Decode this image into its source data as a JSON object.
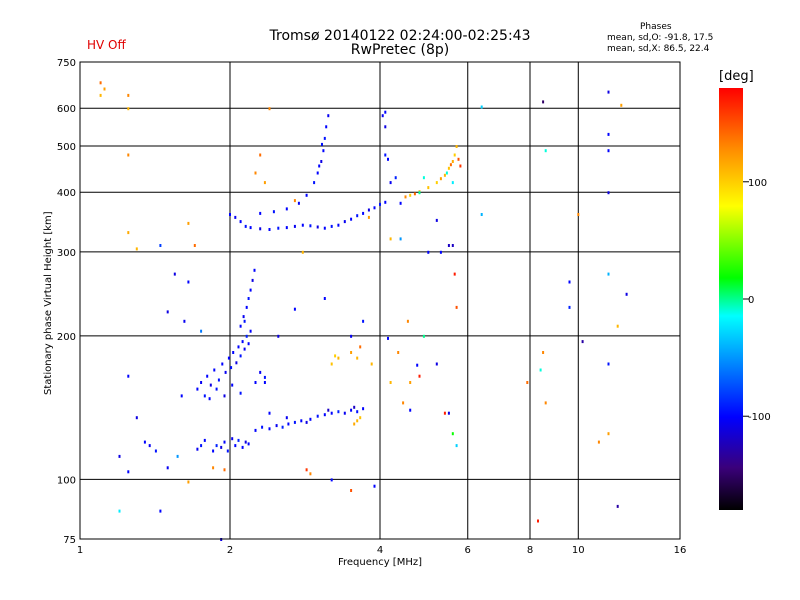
{
  "title": "Tromsø 20140122 02:24:00-02:25:43",
  "subtitle": "RwPretec (8p)",
  "status": "HV Off",
  "phases": {
    "title": "Phases",
    "o_line": "mean, sd,O: -91.8, 17.5",
    "x_line": "mean, sd,X:  86.5, 22.4"
  },
  "colorbar": {
    "unit": "[deg]",
    "range": [
      -180,
      180
    ],
    "ticks": [
      {
        "value": 100,
        "label": "100"
      },
      {
        "value": 0,
        "label": "0"
      },
      {
        "value": -100,
        "label": "-100"
      }
    ]
  },
  "chart_data": {
    "type": "scatter",
    "title": "Tromsø 20140122 02:24:00-02:25:43",
    "subtitle": "RwPretec (8p)",
    "xlabel": "Frequency [MHz]",
    "ylabel": "Stationary phase Virtual Height [km]",
    "xscale": "log",
    "yscale": "log",
    "xlim": [
      1,
      16
    ],
    "ylim": [
      75,
      750
    ],
    "xticks": [
      {
        "value": 1,
        "label": "1"
      },
      {
        "value": 2,
        "label": "2"
      },
      {
        "value": 4,
        "label": "4"
      },
      {
        "value": 6,
        "label": "6"
      },
      {
        "value": 8,
        "label": "8"
      },
      {
        "value": 10,
        "label": "10"
      },
      {
        "value": 16,
        "label": "16"
      }
    ],
    "yticks": [
      {
        "value": 75,
        "label": "75"
      },
      {
        "value": 100,
        "label": "100"
      },
      {
        "value": 200,
        "label": "200"
      },
      {
        "value": 300,
        "label": "300"
      },
      {
        "value": 400,
        "label": "400"
      },
      {
        "value": 500,
        "label": "500"
      },
      {
        "value": 600,
        "label": "600"
      },
      {
        "value": 750,
        "label": "750"
      }
    ],
    "xgrid": [
      2,
      4,
      6,
      8,
      10
    ],
    "ygrid": [
      100,
      200,
      300,
      400,
      500,
      600
    ],
    "color_dimension": "phase [deg]",
    "points": [
      [
        1.85,
        115,
        -100
      ],
      [
        1.88,
        118,
        -90
      ],
      [
        1.92,
        117,
        -110
      ],
      [
        1.95,
        120,
        -100
      ],
      [
        1.98,
        115,
        -95
      ],
      [
        2.02,
        122,
        -105
      ],
      [
        2.05,
        118,
        -100
      ],
      [
        2.08,
        121,
        -90
      ],
      [
        2.12,
        117,
        -100
      ],
      [
        2.15,
        120,
        -110
      ],
      [
        2.18,
        119,
        -100
      ],
      [
        1.75,
        118,
        -95
      ],
      [
        1.78,
        121,
        -100
      ],
      [
        1.72,
        116,
        -105
      ],
      [
        2.25,
        127,
        -100
      ],
      [
        2.32,
        129,
        -95
      ],
      [
        2.4,
        128,
        -100
      ],
      [
        2.48,
        130,
        -105
      ],
      [
        2.55,
        129,
        -90
      ],
      [
        2.62,
        131,
        -100
      ],
      [
        2.7,
        132,
        -95
      ],
      [
        2.78,
        133,
        -100
      ],
      [
        2.85,
        132,
        -110
      ],
      [
        2.9,
        134,
        -100
      ],
      [
        3.0,
        136,
        -95
      ],
      [
        3.1,
        137,
        -100
      ],
      [
        3.2,
        138,
        -100
      ],
      [
        3.3,
        139,
        -90
      ],
      [
        3.4,
        138,
        -105
      ],
      [
        3.5,
        140,
        -100
      ],
      [
        3.6,
        139,
        -95
      ],
      [
        3.7,
        141,
        -100
      ],
      [
        3.15,
        140,
        -120
      ],
      [
        3.55,
        142,
        -120
      ],
      [
        1.72,
        155,
        -100
      ],
      [
        1.75,
        160,
        -105
      ],
      [
        1.78,
        150,
        -95
      ],
      [
        1.8,
        165,
        -100
      ],
      [
        1.83,
        158,
        -110
      ],
      [
        1.86,
        170,
        -100
      ],
      [
        1.9,
        162,
        -95
      ],
      [
        1.93,
        175,
        -100
      ],
      [
        1.96,
        168,
        -105
      ],
      [
        1.99,
        180,
        -100
      ],
      [
        2.01,
        172,
        -95
      ],
      [
        2.03,
        185,
        -100
      ],
      [
        2.06,
        176,
        -110
      ],
      [
        2.08,
        190,
        -100
      ],
      [
        2.1,
        182,
        -95
      ],
      [
        2.12,
        195,
        -100
      ],
      [
        2.14,
        188,
        -105
      ],
      [
        2.16,
        200,
        -90
      ],
      [
        2.18,
        193,
        -100
      ],
      [
        2.2,
        205,
        -100
      ],
      [
        1.82,
        148,
        -100
      ],
      [
        1.88,
        155,
        -95
      ],
      [
        1.95,
        150,
        -110
      ],
      [
        2.02,
        158,
        -100
      ],
      [
        2.1,
        152,
        -95
      ],
      [
        2.25,
        160,
        -100
      ],
      [
        2.3,
        168,
        -105
      ],
      [
        2.35,
        164,
        -95
      ],
      [
        2.1,
        210,
        -100
      ],
      [
        2.13,
        220,
        -105
      ],
      [
        2.16,
        230,
        -100
      ],
      [
        2.18,
        240,
        -95
      ],
      [
        2.2,
        250,
        -100
      ],
      [
        2.22,
        262,
        -110
      ],
      [
        2.24,
        275,
        -100
      ],
      [
        2.14,
        215,
        -95
      ],
      [
        2.0,
        360,
        -100
      ],
      [
        2.05,
        355,
        -105
      ],
      [
        2.1,
        348,
        -100
      ],
      [
        2.15,
        340,
        -95
      ],
      [
        2.2,
        338,
        -100
      ],
      [
        2.3,
        336,
        -110
      ],
      [
        2.4,
        335,
        -100
      ],
      [
        2.5,
        337,
        -95
      ],
      [
        2.6,
        338,
        -100
      ],
      [
        2.7,
        340,
        -105
      ],
      [
        2.8,
        342,
        -100
      ],
      [
        2.9,
        341,
        -95
      ],
      [
        3.0,
        339,
        -110
      ],
      [
        3.1,
        337,
        -100
      ],
      [
        3.2,
        340,
        -95
      ],
      [
        3.3,
        342,
        -100
      ],
      [
        3.4,
        348,
        -105
      ],
      [
        3.5,
        352,
        -100
      ],
      [
        3.6,
        358,
        -95
      ],
      [
        3.7,
        362,
        -100
      ],
      [
        3.8,
        368,
        -110
      ],
      [
        3.9,
        372,
        -100
      ],
      [
        4.0,
        378,
        -95
      ],
      [
        4.1,
        382,
        -100
      ],
      [
        2.3,
        362,
        -100
      ],
      [
        2.45,
        365,
        -95
      ],
      [
        2.6,
        370,
        -100
      ],
      [
        2.75,
        380,
        -105
      ],
      [
        2.85,
        395,
        -100
      ],
      [
        2.95,
        420,
        -95
      ],
      [
        3.0,
        440,
        -100
      ],
      [
        3.05,
        465,
        -110
      ],
      [
        3.08,
        490,
        -100
      ],
      [
        3.1,
        520,
        -95
      ],
      [
        3.12,
        550,
        -100
      ],
      [
        3.15,
        580,
        -105
      ],
      [
        3.02,
        455,
        -100
      ],
      [
        3.06,
        505,
        -95
      ],
      [
        4.6,
        395,
        100
      ],
      [
        4.8,
        402,
        110
      ],
      [
        5.0,
        410,
        105
      ],
      [
        5.2,
        420,
        100
      ],
      [
        5.4,
        435,
        110
      ],
      [
        5.5,
        450,
        105
      ],
      [
        5.6,
        465,
        115
      ],
      [
        5.65,
        480,
        100
      ],
      [
        5.7,
        500,
        110
      ],
      [
        5.3,
        428,
        120
      ],
      [
        5.55,
        458,
        140
      ],
      [
        5.75,
        470,
        150
      ],
      [
        5.45,
        440,
        -10
      ],
      [
        5.6,
        420,
        -20
      ],
      [
        5.8,
        455,
        160
      ],
      [
        4.7,
        398,
        140
      ],
      [
        4.5,
        392,
        130
      ],
      [
        3.2,
        175,
        105
      ],
      [
        3.3,
        180,
        110
      ],
      [
        3.25,
        182,
        100
      ],
      [
        3.5,
        185,
        120
      ],
      [
        3.6,
        180,
        110
      ],
      [
        3.6,
        133,
        110
      ],
      [
        3.65,
        135,
        105
      ],
      [
        3.55,
        131,
        115
      ],
      [
        1.1,
        680,
        140
      ],
      [
        1.12,
        660,
        120
      ],
      [
        1.1,
        640,
        110
      ],
      [
        1.25,
        640,
        130
      ],
      [
        1.25,
        600,
        110
      ],
      [
        1.25,
        480,
        130
      ],
      [
        1.25,
        330,
        115
      ],
      [
        1.65,
        345,
        120
      ],
      [
        1.7,
        310,
        140
      ],
      [
        1.3,
        305,
        110
      ],
      [
        1.45,
        310,
        -80
      ],
      [
        1.55,
        270,
        -110
      ],
      [
        1.65,
        260,
        -100
      ],
      [
        1.5,
        225,
        -110
      ],
      [
        1.75,
        205,
        -60
      ],
      [
        1.62,
        215,
        -105
      ],
      [
        1.25,
        165,
        -100
      ],
      [
        1.3,
        135,
        -110
      ],
      [
        1.35,
        120,
        -100
      ],
      [
        1.38,
        118,
        -105
      ],
      [
        1.42,
        115,
        -95
      ],
      [
        1.2,
        112,
        -110
      ],
      [
        1.25,
        104,
        -100
      ],
      [
        1.5,
        106,
        -105
      ],
      [
        1.57,
        112,
        -50
      ],
      [
        1.65,
        99,
        120
      ],
      [
        1.85,
        106,
        130
      ],
      [
        1.6,
        150,
        -100
      ],
      [
        1.95,
        105,
        140
      ],
      [
        1.92,
        75,
        -110
      ],
      [
        1.2,
        86,
        -20
      ],
      [
        1.45,
        86,
        -100
      ],
      [
        2.4,
        600,
        130
      ],
      [
        2.3,
        480,
        140
      ],
      [
        2.25,
        440,
        130
      ],
      [
        2.35,
        420,
        120
      ],
      [
        2.7,
        385,
        130
      ],
      [
        2.8,
        300,
        110
      ],
      [
        2.7,
        228,
        -100
      ],
      [
        2.5,
        200,
        -110
      ],
      [
        2.35,
        160,
        -100
      ],
      [
        2.4,
        138,
        -100
      ],
      [
        2.6,
        135,
        -105
      ],
      [
        2.85,
        105,
        160
      ],
      [
        2.9,
        103,
        130
      ],
      [
        3.2,
        100,
        -100
      ],
      [
        3.1,
        240,
        -100
      ],
      [
        3.7,
        215,
        -95
      ],
      [
        3.9,
        97,
        -100
      ],
      [
        3.5,
        200,
        -105
      ],
      [
        3.65,
        190,
        140
      ],
      [
        3.85,
        175,
        110
      ],
      [
        3.5,
        95,
        150
      ],
      [
        4.1,
        550,
        -110
      ],
      [
        4.1,
        590,
        -100
      ],
      [
        4.05,
        580,
        -105
      ],
      [
        4.1,
        480,
        -95
      ],
      [
        4.15,
        470,
        -100
      ],
      [
        4.2,
        420,
        -105
      ],
      [
        4.3,
        430,
        -90
      ],
      [
        4.4,
        380,
        -100
      ],
      [
        4.8,
        400,
        0
      ],
      [
        4.9,
        430,
        -10
      ],
      [
        5.0,
        300,
        -100
      ],
      [
        5.2,
        350,
        -110
      ],
      [
        5.3,
        300,
        -100
      ],
      [
        5.5,
        310,
        -120
      ],
      [
        5.6,
        310,
        -120
      ],
      [
        5.7,
        230,
        150
      ],
      [
        4.4,
        320,
        -50
      ],
      [
        4.2,
        320,
        110
      ],
      [
        3.8,
        355,
        120
      ],
      [
        4.55,
        215,
        130
      ],
      [
        4.8,
        165,
        170
      ],
      [
        4.6,
        160,
        120
      ],
      [
        4.2,
        160,
        110
      ],
      [
        4.45,
        145,
        130
      ],
      [
        4.6,
        140,
        -100
      ],
      [
        5.2,
        175,
        -110
      ],
      [
        4.9,
        200,
        0
      ],
      [
        5.5,
        138,
        -110
      ],
      [
        5.4,
        138,
        170
      ],
      [
        5.6,
        125,
        20
      ],
      [
        5.7,
        118,
        -30
      ],
      [
        5.65,
        270,
        170
      ],
      [
        4.35,
        185,
        130
      ],
      [
        4.15,
        198,
        -100
      ],
      [
        4.75,
        174,
        -100
      ],
      [
        6.4,
        360,
        -40
      ],
      [
        6.4,
        605,
        -30
      ],
      [
        8.5,
        620,
        -150
      ],
      [
        8.6,
        490,
        -10
      ],
      [
        10.0,
        360,
        130
      ],
      [
        8.5,
        185,
        130
      ],
      [
        8.4,
        170,
        -10
      ],
      [
        8.6,
        145,
        130
      ],
      [
        9.6,
        260,
        -100
      ],
      [
        9.6,
        230,
        -90
      ],
      [
        10.2,
        195,
        -130
      ],
      [
        11.5,
        650,
        -110
      ],
      [
        11.5,
        530,
        -100
      ],
      [
        11.5,
        490,
        -100
      ],
      [
        11.5,
        400,
        -110
      ],
      [
        11.5,
        270,
        -40
      ],
      [
        11.5,
        125,
        120
      ],
      [
        11.5,
        175,
        -95
      ],
      [
        12.2,
        610,
        120
      ],
      [
        12.0,
        210,
        110
      ],
      [
        12.5,
        245,
        -110
      ],
      [
        12.0,
        88,
        -130
      ],
      [
        11.0,
        120,
        130
      ],
      [
        8.3,
        82,
        170
      ],
      [
        7.9,
        160,
        140
      ]
    ]
  }
}
